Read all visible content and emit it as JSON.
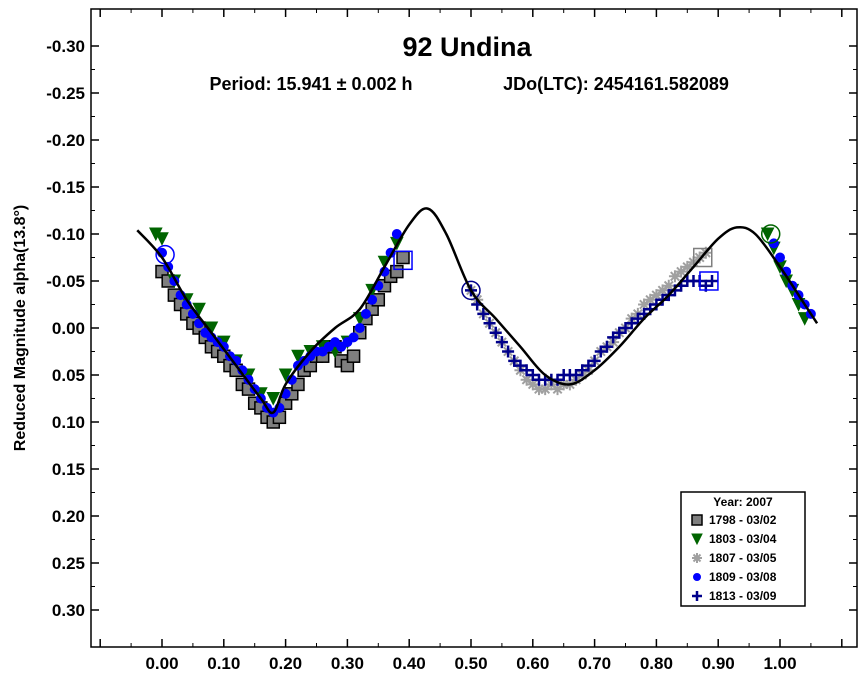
{
  "chart_data": {
    "type": "scatter",
    "title": "92 Undina",
    "subtitle_period": "Period: 15.941 ± 0.002 h",
    "subtitle_epoch": "JDo(LTC): 2454161.582089",
    "xlabel": "",
    "ylabel": "Reduced Magnitude alpha(13.8°)",
    "xlim": [
      -0.11,
      1.11
    ],
    "ylim": [
      -0.335,
      0.335
    ],
    "y_inverted": true,
    "grid": false,
    "legend_position": "bottom-right",
    "legend_title": "Year: 2007",
    "x_ticks": [
      0.0,
      0.1,
      0.2,
      0.3,
      0.4,
      0.5,
      0.6,
      0.7,
      0.8,
      0.9,
      1.0
    ],
    "x_tick_labels": [
      "0.00",
      "0.10",
      "0.20",
      "0.30",
      "0.40",
      "0.50",
      "0.60",
      "0.70",
      "0.80",
      "0.90",
      "1.00"
    ],
    "y_ticks": [
      -0.3,
      -0.25,
      -0.2,
      -0.15,
      -0.1,
      -0.05,
      0.0,
      0.05,
      0.1,
      0.15,
      0.2,
      0.25,
      0.3
    ],
    "y_tick_labels": [
      "-0.30",
      "-0.25",
      "-0.20",
      "-0.15",
      "-0.10",
      "-0.05",
      "0.00",
      "0.05",
      "0.10",
      "0.15",
      "0.20",
      "0.25",
      "0.30"
    ],
    "fit_curve": {
      "x": [
        -0.04,
        0.0,
        0.04,
        0.08,
        0.12,
        0.16,
        0.18,
        0.2,
        0.24,
        0.28,
        0.32,
        0.36,
        0.4,
        0.43,
        0.46,
        0.5,
        0.54,
        0.58,
        0.62,
        0.66,
        0.7,
        0.74,
        0.78,
        0.82,
        0.86,
        0.9,
        0.93,
        0.96,
        1.0,
        1.04,
        1.06
      ],
      "y": [
        -0.104,
        -0.075,
        -0.03,
        0.005,
        0.04,
        0.075,
        0.09,
        0.06,
        0.025,
        0.0,
        -0.02,
        -0.065,
        -0.11,
        -0.127,
        -0.1,
        -0.04,
        -0.01,
        0.02,
        0.05,
        0.06,
        0.045,
        0.02,
        -0.01,
        -0.035,
        -0.065,
        -0.095,
        -0.107,
        -0.1,
        -0.065,
        -0.025,
        -0.005
      ]
    },
    "series": [
      {
        "name": "1798 - 03/02",
        "marker": "square",
        "color": "#7f7f7f",
        "edge": "#000000",
        "x": [
          0.0,
          0.01,
          0.02,
          0.03,
          0.04,
          0.05,
          0.06,
          0.07,
          0.08,
          0.09,
          0.1,
          0.11,
          0.12,
          0.13,
          0.14,
          0.15,
          0.16,
          0.17,
          0.18,
          0.19,
          0.2,
          0.21,
          0.22,
          0.23,
          0.24,
          0.25,
          0.26,
          0.27,
          0.28,
          0.29,
          0.3,
          0.31,
          0.32,
          0.33,
          0.34,
          0.35,
          0.36,
          0.37,
          0.38,
          0.39
        ],
        "y": [
          -0.06,
          -0.05,
          -0.035,
          -0.025,
          -0.015,
          -0.005,
          0.0,
          0.01,
          0.02,
          0.025,
          0.03,
          0.04,
          0.045,
          0.06,
          0.065,
          0.08,
          0.085,
          0.095,
          0.1,
          0.095,
          0.08,
          0.07,
          0.06,
          0.045,
          0.04,
          0.03,
          0.03,
          0.02,
          0.02,
          0.035,
          0.04,
          0.03,
          0.005,
          -0.01,
          -0.02,
          -0.03,
          -0.045,
          -0.055,
          -0.06,
          -0.075
        ]
      },
      {
        "name": "1803 - 03/04",
        "marker": "triangle-down",
        "color": "#006400",
        "edge": "#006400",
        "x": [
          -0.01,
          0.0,
          0.02,
          0.04,
          0.06,
          0.08,
          0.1,
          0.12,
          0.14,
          0.16,
          0.18,
          0.2,
          0.22,
          0.24,
          0.26,
          0.28,
          0.3,
          0.32,
          0.34,
          0.36,
          0.38,
          0.98,
          0.99,
          1.0,
          1.01,
          1.02,
          1.03,
          1.04
        ],
        "y": [
          -0.1,
          -0.095,
          -0.05,
          -0.03,
          -0.02,
          0.0,
          0.015,
          0.035,
          0.05,
          0.07,
          0.075,
          0.05,
          0.03,
          0.025,
          0.02,
          0.025,
          0.015,
          -0.01,
          -0.04,
          -0.07,
          -0.09,
          -0.1,
          -0.085,
          -0.065,
          -0.05,
          -0.04,
          -0.025,
          -0.01
        ]
      },
      {
        "name": "1807 - 03/05",
        "marker": "asterisk",
        "color": "#a0a0a0",
        "edge": "#a0a0a0",
        "x": [
          0.5,
          0.51,
          0.52,
          0.53,
          0.54,
          0.55,
          0.56,
          0.57,
          0.58,
          0.59,
          0.6,
          0.61,
          0.62,
          0.63,
          0.64,
          0.65,
          0.66,
          0.67,
          0.68,
          0.69,
          0.7,
          0.71,
          0.72,
          0.73,
          0.74,
          0.75,
          0.76,
          0.77,
          0.78,
          0.79,
          0.8,
          0.81,
          0.82,
          0.83,
          0.84,
          0.85,
          0.86,
          0.87,
          0.88
        ],
        "y": [
          -0.04,
          -0.03,
          -0.015,
          -0.005,
          0.005,
          0.015,
          0.025,
          0.035,
          0.045,
          0.055,
          0.06,
          0.065,
          0.065,
          0.06,
          0.065,
          0.06,
          0.06,
          0.055,
          0.05,
          0.045,
          0.035,
          0.025,
          0.02,
          0.015,
          0.005,
          0.0,
          -0.01,
          -0.015,
          -0.025,
          -0.03,
          -0.035,
          -0.04,
          -0.045,
          -0.055,
          -0.06,
          -0.065,
          -0.07,
          -0.075,
          -0.08
        ]
      },
      {
        "name": "1809 - 03/08",
        "marker": "circle",
        "color": "#0000ff",
        "edge": "#0000ff",
        "x": [
          0.0,
          0.01,
          0.02,
          0.03,
          0.04,
          0.05,
          0.06,
          0.07,
          0.08,
          0.09,
          0.1,
          0.11,
          0.12,
          0.13,
          0.14,
          0.15,
          0.16,
          0.17,
          0.18,
          0.19,
          0.2,
          0.21,
          0.22,
          0.23,
          0.24,
          0.25,
          0.26,
          0.27,
          0.28,
          0.29,
          0.3,
          0.31,
          0.32,
          0.33,
          0.34,
          0.35,
          0.36,
          0.37,
          0.38,
          0.99,
          1.0,
          1.01,
          1.02,
          1.03,
          1.04,
          1.05
        ],
        "y": [
          -0.08,
          -0.065,
          -0.05,
          -0.035,
          -0.025,
          -0.015,
          -0.005,
          0.005,
          0.01,
          0.015,
          0.02,
          0.03,
          0.035,
          0.045,
          0.055,
          0.065,
          0.075,
          0.085,
          0.09,
          0.085,
          0.07,
          0.055,
          0.04,
          0.035,
          0.03,
          0.025,
          0.025,
          0.02,
          0.015,
          0.02,
          0.015,
          0.01,
          0.0,
          -0.015,
          -0.03,
          -0.045,
          -0.06,
          -0.08,
          -0.1,
          -0.09,
          -0.075,
          -0.06,
          -0.045,
          -0.035,
          -0.025,
          -0.015
        ]
      },
      {
        "name": "1813 - 03/09",
        "marker": "cross",
        "color": "#00008b",
        "edge": "#00008b",
        "x": [
          0.5,
          0.51,
          0.52,
          0.53,
          0.54,
          0.55,
          0.56,
          0.57,
          0.58,
          0.59,
          0.6,
          0.61,
          0.62,
          0.63,
          0.64,
          0.65,
          0.66,
          0.67,
          0.68,
          0.69,
          0.7,
          0.71,
          0.72,
          0.73,
          0.74,
          0.75,
          0.76,
          0.77,
          0.78,
          0.79,
          0.8,
          0.81,
          0.82,
          0.83,
          0.84,
          0.85,
          0.86,
          0.87,
          0.88,
          0.89
        ],
        "y": [
          -0.04,
          -0.025,
          -0.015,
          -0.005,
          0.005,
          0.015,
          0.025,
          0.035,
          0.04,
          0.045,
          0.05,
          0.055,
          0.055,
          0.055,
          0.055,
          0.05,
          0.05,
          0.05,
          0.045,
          0.04,
          0.035,
          0.025,
          0.02,
          0.01,
          0.005,
          0.0,
          -0.005,
          -0.01,
          -0.015,
          -0.02,
          -0.025,
          -0.03,
          -0.035,
          -0.04,
          -0.045,
          -0.05,
          -0.05,
          -0.05,
          -0.045,
          -0.05
        ]
      }
    ],
    "annotations": [
      {
        "series": "1798 - 03/02",
        "marker": "square-open",
        "color": "#7f7f7f",
        "x": 0.875,
        "y": -0.075
      },
      {
        "series": "1809 - 03/08",
        "marker": "square-open",
        "color": "#0000ff",
        "x": 0.39,
        "y": -0.072
      },
      {
        "series": "1809 - 03/08",
        "marker": "square-open",
        "color": "#0000ff",
        "x": 0.885,
        "y": -0.05
      },
      {
        "series": "1803 - 03/04",
        "marker": "circle-open",
        "color": "#006400",
        "x": 0.985,
        "y": -0.1
      },
      {
        "series": "1809 - 03/08",
        "marker": "circle-open",
        "color": "#0000ff",
        "x": 0.005,
        "y": -0.078
      },
      {
        "series": "1813 - 03/09",
        "marker": "circle-open",
        "color": "#00008b",
        "x": 0.5,
        "y": -0.04
      }
    ]
  }
}
